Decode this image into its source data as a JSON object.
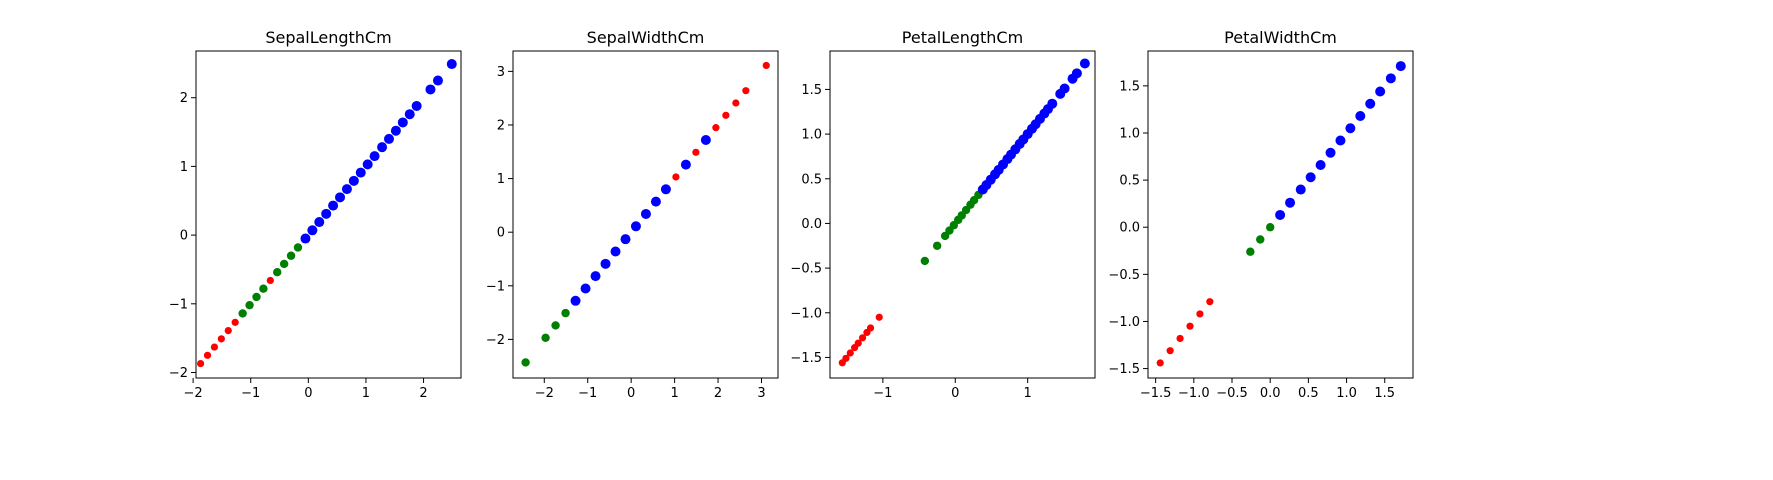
{
  "chart_data": [
    {
      "type": "scatter",
      "title": "SepalLengthCm",
      "xlabel": "",
      "ylabel": "",
      "xlim": [
        -1.95,
        2.65
      ],
      "ylim": [
        -2.08,
        2.68
      ],
      "xticks": [
        -2,
        -1,
        0,
        1,
        2
      ],
      "yticks": [
        -2,
        -1,
        0,
        1,
        2
      ],
      "grid": false,
      "groups": [
        {
          "color": "#ff0000",
          "size": "small",
          "points": [
            [
              -1.87,
              -1.87
            ],
            [
              -1.75,
              -1.75
            ],
            [
              -1.63,
              -1.63
            ],
            [
              -1.51,
              -1.51
            ],
            [
              -1.39,
              -1.39
            ],
            [
              -1.27,
              -1.27
            ],
            [
              -0.66,
              -0.66
            ]
          ]
        },
        {
          "color": "#008000",
          "size": "medium",
          "points": [
            [
              -1.14,
              -1.14
            ],
            [
              -1.02,
              -1.02
            ],
            [
              -0.9,
              -0.9
            ],
            [
              -0.78,
              -0.78
            ],
            [
              -0.54,
              -0.54
            ],
            [
              -0.42,
              -0.42
            ],
            [
              -0.3,
              -0.3
            ],
            [
              -0.18,
              -0.18
            ]
          ]
        },
        {
          "color": "#0000ff",
          "size": "large",
          "points": [
            [
              -0.05,
              -0.05
            ],
            [
              0.07,
              0.07
            ],
            [
              0.19,
              0.19
            ],
            [
              0.31,
              0.31
            ],
            [
              0.43,
              0.43
            ],
            [
              0.55,
              0.55
            ],
            [
              0.67,
              0.67
            ],
            [
              0.79,
              0.79
            ],
            [
              0.91,
              0.91
            ],
            [
              1.03,
              1.03
            ],
            [
              1.15,
              1.15
            ],
            [
              1.28,
              1.28
            ],
            [
              1.4,
              1.4
            ],
            [
              1.52,
              1.52
            ],
            [
              1.64,
              1.64
            ],
            [
              1.76,
              1.76
            ],
            [
              1.88,
              1.88
            ],
            [
              2.12,
              2.12
            ],
            [
              2.25,
              2.25
            ],
            [
              2.49,
              2.49
            ]
          ]
        }
      ]
    },
    {
      "type": "scatter",
      "title": "SepalWidthCm",
      "xlabel": "",
      "ylabel": "",
      "xlim": [
        -2.72,
        3.38
      ],
      "ylim": [
        -2.72,
        3.38
      ],
      "xticks": [
        -2,
        -1,
        0,
        1,
        2,
        3
      ],
      "yticks": [
        -2,
        -1,
        0,
        1,
        2,
        3
      ],
      "grid": false,
      "groups": [
        {
          "color": "#ff0000",
          "size": "small",
          "points": [
            [
              1.03,
              1.03
            ],
            [
              1.49,
              1.49
            ],
            [
              1.95,
              1.95
            ],
            [
              2.18,
              2.18
            ],
            [
              2.41,
              2.41
            ],
            [
              2.64,
              2.64
            ],
            [
              3.11,
              3.11
            ]
          ]
        },
        {
          "color": "#008000",
          "size": "medium",
          "points": [
            [
              -2.43,
              -2.43
            ],
            [
              -1.97,
              -1.97
            ],
            [
              -1.74,
              -1.74
            ],
            [
              -1.51,
              -1.51
            ]
          ]
        },
        {
          "color": "#0000ff",
          "size": "large",
          "points": [
            [
              -1.28,
              -1.28
            ],
            [
              -1.05,
              -1.05
            ],
            [
              -0.82,
              -0.82
            ],
            [
              -0.59,
              -0.59
            ],
            [
              -0.36,
              -0.36
            ],
            [
              -0.13,
              -0.13
            ],
            [
              0.11,
              0.11
            ],
            [
              0.34,
              0.34
            ],
            [
              0.57,
              0.57
            ],
            [
              0.8,
              0.8
            ],
            [
              1.26,
              1.26
            ],
            [
              1.72,
              1.72
            ]
          ]
        }
      ]
    },
    {
      "type": "scatter",
      "title": "PetalLengthCm",
      "xlabel": "",
      "ylabel": "",
      "xlim": [
        -1.73,
        1.93
      ],
      "ylim": [
        -1.73,
        1.93
      ],
      "xticks": [
        -1,
        0,
        1
      ],
      "yticks": [
        -1.5,
        -1.0,
        -0.5,
        0.0,
        0.5,
        1.0,
        1.5
      ],
      "ytick_labels": [
        "−1.5",
        "−1.0",
        "−0.5",
        "0.0",
        "0.5",
        "1.0",
        "1.5"
      ],
      "grid": false,
      "groups": [
        {
          "color": "#ff0000",
          "size": "small",
          "points": [
            [
              -1.56,
              -1.56
            ],
            [
              -1.51,
              -1.51
            ],
            [
              -1.45,
              -1.45
            ],
            [
              -1.39,
              -1.39
            ],
            [
              -1.34,
              -1.34
            ],
            [
              -1.28,
              -1.28
            ],
            [
              -1.22,
              -1.22
            ],
            [
              -1.17,
              -1.17
            ],
            [
              -1.05,
              -1.05
            ]
          ]
        },
        {
          "color": "#008000",
          "size": "medium",
          "points": [
            [
              -0.42,
              -0.42
            ],
            [
              -0.25,
              -0.25
            ],
            [
              -0.14,
              -0.14
            ],
            [
              -0.08,
              -0.08
            ],
            [
              -0.02,
              -0.02
            ],
            [
              0.04,
              0.04
            ],
            [
              0.09,
              0.09
            ],
            [
              0.15,
              0.15
            ],
            [
              0.21,
              0.21
            ],
            [
              0.26,
              0.26
            ],
            [
              0.32,
              0.32
            ]
          ]
        },
        {
          "color": "#0000ff",
          "size": "large",
          "points": [
            [
              0.38,
              0.38
            ],
            [
              0.43,
              0.43
            ],
            [
              0.49,
              0.49
            ],
            [
              0.55,
              0.55
            ],
            [
              0.6,
              0.6
            ],
            [
              0.66,
              0.66
            ],
            [
              0.72,
              0.72
            ],
            [
              0.77,
              0.77
            ],
            [
              0.83,
              0.83
            ],
            [
              0.89,
              0.89
            ],
            [
              0.94,
              0.94
            ],
            [
              1.0,
              1.0
            ],
            [
              1.06,
              1.06
            ],
            [
              1.11,
              1.11
            ],
            [
              1.17,
              1.17
            ],
            [
              1.23,
              1.23
            ],
            [
              1.28,
              1.28
            ],
            [
              1.34,
              1.34
            ],
            [
              1.45,
              1.45
            ],
            [
              1.51,
              1.51
            ],
            [
              1.62,
              1.62
            ],
            [
              1.68,
              1.68
            ],
            [
              1.79,
              1.79
            ]
          ]
        }
      ]
    },
    {
      "type": "scatter",
      "title": "PetalWidthCm",
      "xlabel": "",
      "ylabel": "",
      "xlim": [
        -1.6,
        1.87
      ],
      "ylim": [
        -1.6,
        1.87
      ],
      "xticks": [
        -1.5,
        -1.0,
        -0.5,
        0.0,
        0.5,
        1.0,
        1.5
      ],
      "xtick_labels": [
        "−1.5",
        "−1.0",
        "−0.5",
        "0.0",
        "0.5",
        "1.0",
        "1.5"
      ],
      "yticks": [
        -1.5,
        -1.0,
        -0.5,
        0.0,
        0.5,
        1.0,
        1.5
      ],
      "ytick_labels": [
        "−1.5",
        "−1.0",
        "−0.5",
        "0.0",
        "0.5",
        "1.0",
        "1.5"
      ],
      "grid": false,
      "groups": [
        {
          "color": "#ff0000",
          "size": "small",
          "points": [
            [
              -1.44,
              -1.44
            ],
            [
              -1.31,
              -1.31
            ],
            [
              -1.18,
              -1.18
            ],
            [
              -1.05,
              -1.05
            ],
            [
              -0.92,
              -0.92
            ],
            [
              -0.79,
              -0.79
            ]
          ]
        },
        {
          "color": "#008000",
          "size": "medium",
          "points": [
            [
              -0.26,
              -0.26
            ],
            [
              -0.13,
              -0.13
            ],
            [
              0.0,
              0.0
            ]
          ]
        },
        {
          "color": "#0000ff",
          "size": "large",
          "points": [
            [
              0.13,
              0.13
            ],
            [
              0.26,
              0.26
            ],
            [
              0.4,
              0.4
            ],
            [
              0.53,
              0.53
            ],
            [
              0.66,
              0.66
            ],
            [
              0.79,
              0.79
            ],
            [
              0.92,
              0.92
            ],
            [
              1.05,
              1.05
            ],
            [
              1.18,
              1.18
            ],
            [
              1.31,
              1.31
            ],
            [
              1.44,
              1.44
            ],
            [
              1.58,
              1.58
            ],
            [
              1.71,
              1.71
            ]
          ]
        }
      ]
    }
  ]
}
